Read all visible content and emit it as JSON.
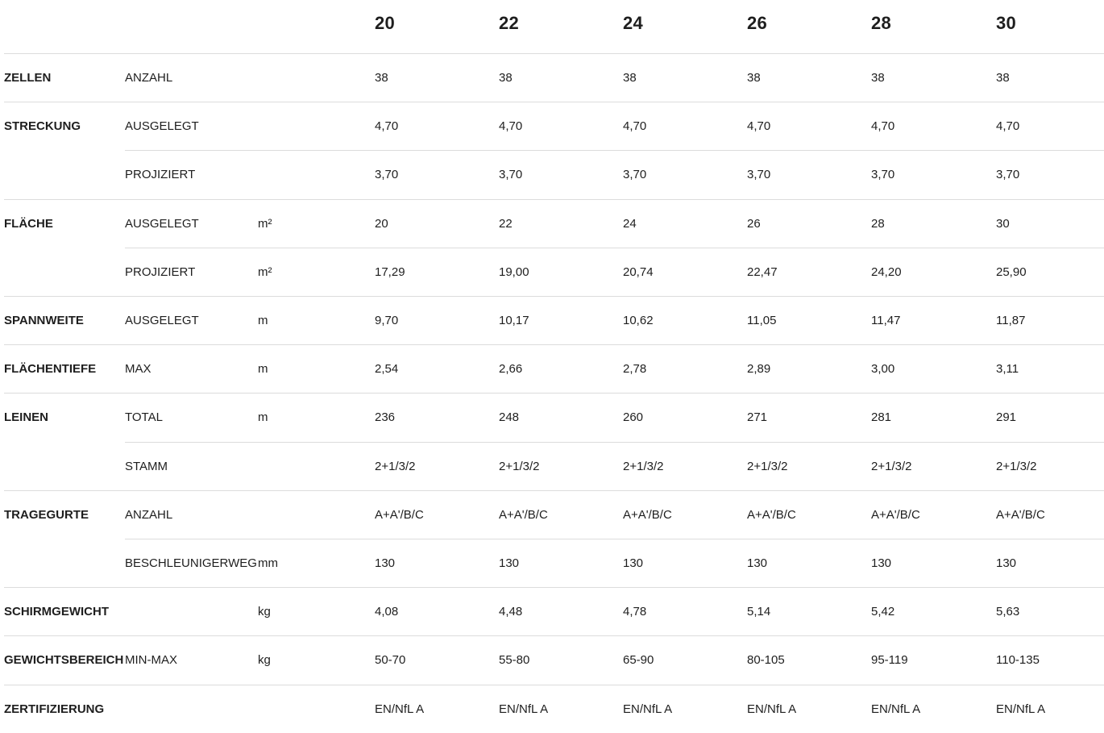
{
  "sizes": [
    "20",
    "22",
    "24",
    "26",
    "28",
    "30"
  ],
  "rows": [
    {
      "group": "ZELLEN",
      "sub": "ANZAHL",
      "unit": "",
      "values": [
        "38",
        "38",
        "38",
        "38",
        "38",
        "38"
      ]
    },
    {
      "group": "STRECKUNG",
      "sub": "AUSGELEGT",
      "unit": "",
      "values": [
        "4,70",
        "4,70",
        "4,70",
        "4,70",
        "4,70",
        "4,70"
      ]
    },
    {
      "group": "",
      "sub": "PROJIZIERT",
      "unit": "",
      "values": [
        "3,70",
        "3,70",
        "3,70",
        "3,70",
        "3,70",
        "3,70"
      ]
    },
    {
      "group": "FLÄCHE",
      "sub": "AUSGELEGT",
      "unit": "m²",
      "values": [
        "20",
        "22",
        "24",
        "26",
        "28",
        "30"
      ]
    },
    {
      "group": "",
      "sub": "PROJIZIERT",
      "unit": "m²",
      "values": [
        "17,29",
        "19,00",
        "20,74",
        "22,47",
        "24,20",
        "25,90"
      ]
    },
    {
      "group": "SPANNWEITE",
      "sub": "AUSGELEGT",
      "unit": "m",
      "values": [
        "9,70",
        "10,17",
        "10,62",
        "11,05",
        "11,47",
        "11,87"
      ]
    },
    {
      "group": "FLÄCHENTIEFE",
      "sub": "MAX",
      "unit": "m",
      "values": [
        "2,54",
        "2,66",
        "2,78",
        "2,89",
        "3,00",
        "3,11"
      ]
    },
    {
      "group": "LEINEN",
      "sub": "TOTAL",
      "unit": "m",
      "values": [
        "236",
        "248",
        "260",
        "271",
        "281",
        "291"
      ]
    },
    {
      "group": "",
      "sub": "STAMM",
      "unit": "",
      "values": [
        "2+1/3/2",
        "2+1/3/2",
        "2+1/3/2",
        "2+1/3/2",
        "2+1/3/2",
        "2+1/3/2"
      ]
    },
    {
      "group": "TRAGEGURTE",
      "sub": "ANZAHL",
      "unit": "",
      "values": [
        "A+A'/B/C",
        "A+A'/B/C",
        "A+A'/B/C",
        "A+A'/B/C",
        "A+A'/B/C",
        "A+A'/B/C"
      ]
    },
    {
      "group": "",
      "sub": "BESCHLEUNIGERWEG",
      "unit": "mm",
      "values": [
        "130",
        "130",
        "130",
        "130",
        "130",
        "130"
      ]
    },
    {
      "group": "SCHIRMGEWICHT",
      "sub": "",
      "unit": "kg",
      "values": [
        "4,08",
        "4,48",
        "4,78",
        "5,14",
        "5,42",
        "5,63"
      ]
    },
    {
      "group": "GEWICHTSBEREICH",
      "sub": "MIN-MAX",
      "unit": "kg",
      "values": [
        "50-70",
        "55-80",
        "65-90",
        "80-105",
        "95-119",
        "110-135"
      ]
    },
    {
      "group": "ZERTIFIZIERUNG",
      "sub": "",
      "unit": "",
      "values": [
        "EN/NfL A",
        "EN/NfL A",
        "EN/NfL A",
        "EN/NfL A",
        "EN/NfL A",
        "EN/NfL A"
      ]
    }
  ]
}
